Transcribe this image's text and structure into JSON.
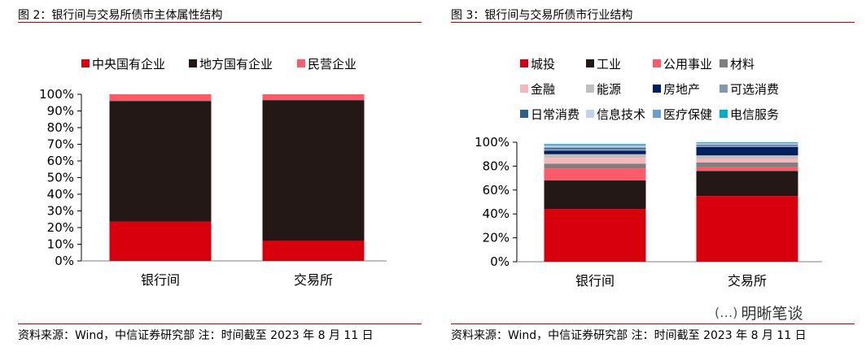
{
  "chart_data": [
    {
      "type": "bar",
      "stacked": true,
      "title": "图 2：银行间与交易所债市主体属性结构",
      "categories": [
        "银行间",
        "交易所"
      ],
      "yticks": [
        "0%",
        "10%",
        "20%",
        "30%",
        "40%",
        "50%",
        "60%",
        "70%",
        "80%",
        "90%",
        "100%"
      ],
      "ylim": [
        0,
        100
      ],
      "legend_position": "top",
      "series": [
        {
          "name": "中央国有企业",
          "color": "#d9000d",
          "values": [
            23.5,
            12
          ]
        },
        {
          "name": "地方国有企业",
          "color": "#231815",
          "values": [
            72.5,
            84.5
          ]
        },
        {
          "name": "民营企业",
          "color": "#fd5b6a",
          "values": [
            4,
            3.5
          ]
        }
      ],
      "source": "资料来源：Wind，中信证券研究部  注：时间截至 2023 年 8 月 11 日"
    },
    {
      "type": "bar",
      "stacked": true,
      "title": "图 3：银行间与交易所债市行业结构",
      "categories": [
        "银行间",
        "交易所"
      ],
      "yticks": [
        "0%",
        "20%",
        "40%",
        "60%",
        "80%",
        "100%"
      ],
      "ylim": [
        0,
        100
      ],
      "legend_position": "top",
      "series": [
        {
          "name": "城投",
          "color": "#d9000d",
          "values": [
            44,
            55
          ]
        },
        {
          "name": "工业",
          "color": "#231815",
          "values": [
            24,
            21
          ]
        },
        {
          "name": "公用事业",
          "color": "#fd5b6a",
          "values": [
            10,
            3
          ]
        },
        {
          "name": "材料",
          "color": "#7f7f7f",
          "values": [
            4,
            4
          ]
        },
        {
          "name": "金融",
          "color": "#f7b6bd",
          "values": [
            5,
            3
          ]
        },
        {
          "name": "能源",
          "color": "#bfbfbf",
          "values": [
            3,
            3
          ]
        },
        {
          "name": "房地产",
          "color": "#002060",
          "values": [
            3,
            7
          ]
        },
        {
          "name": "可选消费",
          "color": "#8497b0",
          "values": [
            1.5,
            1.5
          ]
        },
        {
          "name": "日常消费",
          "color": "#2e5f8a",
          "values": [
            1,
            0.5
          ]
        },
        {
          "name": "信息技术",
          "color": "#c0d3e8",
          "values": [
            1.5,
            1
          ]
        },
        {
          "name": "医疗保健",
          "color": "#6a9fd0",
          "values": [
            1,
            0.5
          ]
        },
        {
          "name": "电信服务",
          "color": "#00b0c0",
          "values": [
            0.5,
            0.5
          ]
        }
      ],
      "source": "资料来源：Wind，中信证券研究部  注：时间截至 2023 年 8 月 11 日"
    }
  ],
  "watermark": {
    "icon": "wechat-bubble-icon",
    "text": "明晰笔谈"
  },
  "theme": {
    "rule_color": "#c00000"
  }
}
